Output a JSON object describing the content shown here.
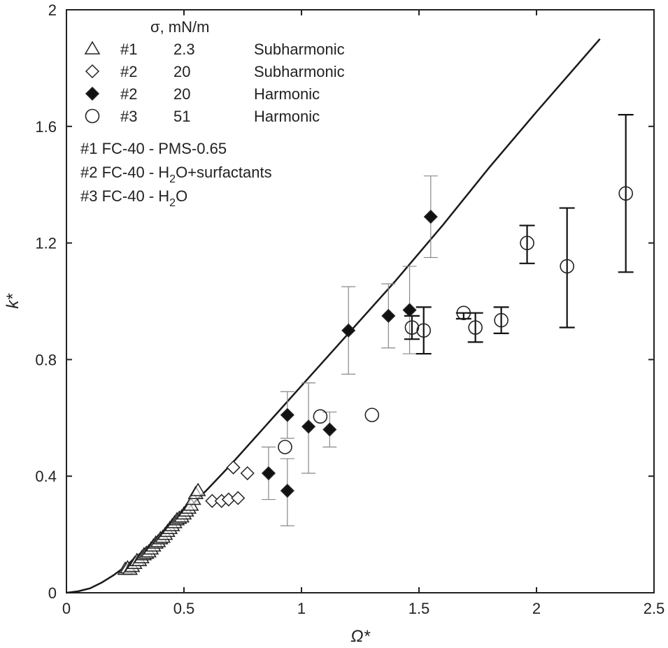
{
  "chart_data": {
    "type": "scatter",
    "xlabel": "Ω*",
    "ylabel": "k*",
    "xlim": [
      0,
      2.5
    ],
    "ylim": [
      0,
      2
    ],
    "x_ticks": [
      "0",
      "0.5",
      "1",
      "1.5",
      "2",
      "2.5"
    ],
    "y_ticks": [
      "0",
      "0.4",
      "0.8",
      "1.2",
      "1.6",
      "2"
    ],
    "grid": false,
    "legend": {
      "placement": "top-left",
      "header": "σ, mN/m",
      "entries": [
        {
          "id": "#1",
          "sigma": "2.3",
          "mode": "Subharmonic",
          "marker": "open-triangle"
        },
        {
          "id": "#2",
          "sigma": "20",
          "mode": "Subharmonic",
          "marker": "open-diamond"
        },
        {
          "id": "#2",
          "sigma": "20",
          "mode": "Harmonic",
          "marker": "filled-diamond"
        },
        {
          "id": "#3",
          "sigma": "51",
          "mode": "Harmonic",
          "marker": "open-circle"
        }
      ],
      "systems": [
        {
          "prefix": "#1 FC-40 - PMS-0.65",
          "sub": "",
          "suffix": ""
        },
        {
          "prefix": "#2 FC-40 - H",
          "sub": "2",
          "suffix": "O+surfactants"
        },
        {
          "prefix": "#3 FC-40 - H",
          "sub": "2",
          "suffix": "O"
        }
      ]
    },
    "theory_curve": {
      "x": [
        0,
        0.05,
        0.1,
        0.15,
        0.2,
        0.25,
        0.3,
        0.35,
        0.4,
        0.5,
        0.6,
        0.7,
        0.8,
        0.9,
        1.0,
        1.2,
        1.4,
        1.6,
        1.8,
        2.0,
        2.27
      ],
      "y": [
        0,
        0.005,
        0.015,
        0.035,
        0.06,
        0.09,
        0.125,
        0.16,
        0.2,
        0.275,
        0.355,
        0.44,
        0.53,
        0.62,
        0.71,
        0.89,
        1.07,
        1.26,
        1.46,
        1.65,
        1.9
      ]
    },
    "series": [
      {
        "marker": "open-triangle",
        "x": [
          0.25,
          0.26,
          0.27,
          0.28,
          0.29,
          0.3,
          0.31,
          0.32,
          0.33,
          0.34,
          0.35,
          0.36,
          0.37,
          0.38,
          0.39,
          0.4,
          0.41,
          0.42,
          0.43,
          0.44,
          0.45,
          0.46,
          0.47,
          0.48,
          0.49,
          0.5,
          0.51,
          0.52,
          0.53,
          0.54,
          0.55,
          0.56
        ],
        "y": [
          0.08,
          0.085,
          0.08,
          0.09,
          0.1,
          0.11,
          0.11,
          0.12,
          0.13,
          0.135,
          0.14,
          0.15,
          0.16,
          0.17,
          0.175,
          0.185,
          0.19,
          0.2,
          0.21,
          0.22,
          0.23,
          0.24,
          0.25,
          0.255,
          0.26,
          0.27,
          0.28,
          0.29,
          0.3,
          0.32,
          0.34,
          0.35
        ]
      },
      {
        "marker": "open-diamond",
        "x": [
          0.62,
          0.66,
          0.69,
          0.71,
          0.73,
          0.77
        ],
        "y": [
          0.315,
          0.315,
          0.32,
          0.43,
          0.325,
          0.41
        ]
      },
      {
        "marker": "filled-diamond",
        "x": [
          0.86,
          0.94,
          0.94,
          1.03,
          1.12,
          1.2,
          1.37,
          1.46,
          1.55
        ],
        "y": [
          0.41,
          0.35,
          0.61,
          0.57,
          0.56,
          0.9,
          0.95,
          0.97,
          1.29
        ],
        "err_low": [
          0.32,
          0.23,
          0.53,
          0.41,
          0.5,
          0.75,
          0.84,
          0.82,
          1.15
        ],
        "err_high": [
          0.5,
          0.46,
          0.69,
          0.72,
          0.62,
          1.05,
          1.06,
          1.12,
          1.43
        ]
      },
      {
        "marker": "open-circle",
        "x": [
          0.93,
          1.08,
          1.3,
          1.47,
          1.52,
          1.69,
          1.74,
          1.85,
          1.96,
          2.13,
          2.38
        ],
        "y": [
          0.5,
          0.605,
          0.61,
          0.91,
          0.9,
          0.96,
          0.91,
          0.935,
          1.2,
          1.12,
          1.37
        ],
        "err_low": [
          null,
          null,
          null,
          0.87,
          0.82,
          0.94,
          0.86,
          0.89,
          1.13,
          0.91,
          1.1
        ],
        "err_high": [
          null,
          null,
          null,
          0.95,
          0.98,
          0.96,
          0.96,
          0.98,
          1.26,
          1.32,
          1.64
        ]
      }
    ]
  }
}
